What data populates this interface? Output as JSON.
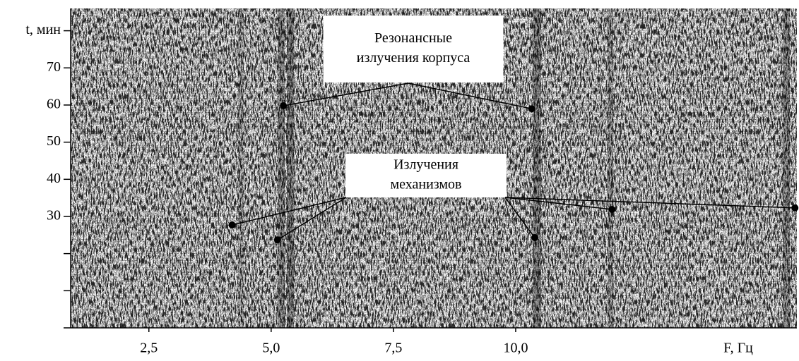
{
  "chart_data": {
    "type": "spectrogram",
    "x_label": "F, Гц",
    "xlim": [
      0.9,
      15.75
    ],
    "xticks": [
      {
        "value": 2.5,
        "label": "2,5"
      },
      {
        "value": 5.0,
        "label": "5,0"
      },
      {
        "value": 7.5,
        "label": "7,5"
      },
      {
        "value": 10.0,
        "label": "10,0"
      }
    ],
    "ylim": [
      0,
      86
    ],
    "yticks": [
      30,
      40,
      50,
      60,
      70,
      {
        "value": 80,
        "label": "t, мин"
      }
    ],
    "minor_yticks": [
      0,
      10,
      20
    ],
    "annotations": [
      {
        "text": [
          "Резонансные",
          "излучения корпуса"
        ],
        "points": [
          {
            "x": 5.25,
            "y": 59.8
          },
          {
            "x": 10.33,
            "y": 59.0
          }
        ]
      },
      {
        "text": [
          "Излучения",
          "механизмов"
        ],
        "points": [
          {
            "x": 4.2,
            "y": 27.7
          },
          {
            "x": 5.13,
            "y": 23.7
          },
          {
            "x": 10.39,
            "y": 24.3
          },
          {
            "x": 11.97,
            "y": 31.9
          },
          {
            "x": 15.71,
            "y": 32.3
          }
        ]
      }
    ]
  }
}
